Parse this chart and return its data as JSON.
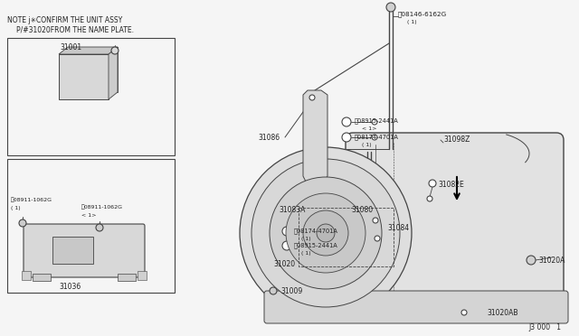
{
  "bg_color": "#f5f5f5",
  "line_color": "#444444",
  "text_color": "#222222",
  "diagram_ref": "J3 000   1",
  "note_line1": "NOTE j✳CONFIRM THE UNIT ASSY",
  "note_line2": "P/#31020FROM THE NAME PLATE."
}
